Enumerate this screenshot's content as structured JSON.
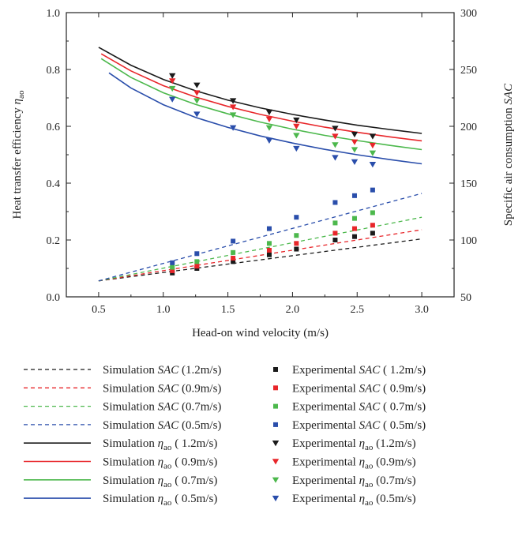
{
  "chart_data": {
    "type": "line",
    "xlabel": "Head-on wind velocity (m/s)",
    "ylabel_left": {
      "main": "Heat transfer efficiency ",
      "symbol": "η",
      "sub": "ao"
    },
    "ylabel_right": {
      "main": "Specific air consumption ",
      "italic": "SAC"
    },
    "xlim": [
      0.25,
      3.25
    ],
    "ylim_left": [
      0.0,
      1.0
    ],
    "ylim_right": [
      50,
      300
    ],
    "xticks": [
      "0.5",
      "1.0",
      "1.5",
      "2.0",
      "2.5",
      "3.0"
    ],
    "yticks_left": [
      "0.0",
      "0.2",
      "0.4",
      "0.6",
      "0.8",
      "1.0"
    ],
    "yticks_right": [
      "50",
      "100",
      "150",
      "200",
      "250",
      "300"
    ],
    "grid": false,
    "legend_position": "bottom",
    "colors": {
      "black": "#1a1a1a",
      "red": "#e8262a",
      "green": "#4cb84c",
      "blue": "#2a4eab"
    },
    "sim_sac": [
      {
        "color": "black",
        "legend": {
          "prefix": "Simulation ",
          "italic": "SAC",
          "suffix": " (1.2m/s)"
        },
        "x": [
          0.5,
          3.0
        ],
        "y": [
          64,
          101
        ]
      },
      {
        "color": "red",
        "legend": {
          "prefix": "Simulation ",
          "italic": "SAC",
          "suffix": " (0.9m/s)"
        },
        "x": [
          0.5,
          3.0
        ],
        "y": [
          64,
          109
        ]
      },
      {
        "color": "green",
        "legend": {
          "prefix": "Simulation ",
          "italic": "SAC",
          "suffix": " (0.7m/s)"
        },
        "x": [
          0.5,
          3.0
        ],
        "y": [
          64,
          120
        ]
      },
      {
        "color": "blue",
        "legend": {
          "prefix": "Simulation ",
          "italic": "SAC",
          "suffix": " (0.5m/s)"
        },
        "x": [
          0.5,
          3.0
        ],
        "y": [
          64,
          141
        ]
      }
    ],
    "exp_sac": [
      {
        "color": "black",
        "legend": {
          "prefix": "Experimental ",
          "italic": "SAC",
          "suffix": " ( 1.2m/s)"
        },
        "x": [
          1.07,
          1.26,
          1.54,
          1.82,
          2.03,
          2.33,
          2.48,
          2.62
        ],
        "y": [
          71,
          75,
          81,
          87,
          92,
          100,
          103,
          106
        ]
      },
      {
        "color": "red",
        "legend": {
          "prefix": "Experimental ",
          "italic": "SAC",
          "suffix": " ( 0.9m/s)"
        },
        "x": [
          1.07,
          1.26,
          1.54,
          1.82,
          2.03,
          2.33,
          2.48,
          2.62
        ],
        "y": [
          73,
          77,
          84,
          91,
          97,
          106,
          110,
          113
        ]
      },
      {
        "color": "green",
        "legend": {
          "prefix": "Experimental ",
          "italic": "SAC",
          "suffix": " ( 0.7m/s)"
        },
        "x": [
          1.07,
          1.26,
          1.54,
          1.82,
          2.03,
          2.33,
          2.48,
          2.62
        ],
        "y": [
          76,
          81,
          89,
          97,
          104,
          115,
          119,
          124
        ]
      },
      {
        "color": "blue",
        "legend": {
          "prefix": "Experimental ",
          "italic": "SAC",
          "suffix": " ( 0.5m/s)"
        },
        "x": [
          1.07,
          1.26,
          1.54,
          1.82,
          2.03,
          2.33,
          2.48,
          2.62
        ],
        "y": [
          80,
          88,
          99,
          110,
          120,
          133,
          139,
          144
        ]
      }
    ],
    "sim_eta": [
      {
        "color": "black",
        "legend": {
          "prefix": "Simulation ",
          "symbol": "η",
          "sub": "ao",
          "suffix": " ( 1.2m/s)"
        },
        "x": [
          0.5,
          0.75,
          1.0,
          1.25,
          1.5,
          1.75,
          2.0,
          2.25,
          2.5,
          2.75,
          3.0
        ],
        "y": [
          0.878,
          0.815,
          0.765,
          0.725,
          0.692,
          0.665,
          0.642,
          0.622,
          0.604,
          0.589,
          0.575
        ]
      },
      {
        "color": "red",
        "legend": {
          "prefix": "Simulation ",
          "symbol": "η",
          "sub": "ao",
          "suffix": " ( 0.9m/s)"
        },
        "x": [
          0.52,
          0.75,
          1.0,
          1.25,
          1.5,
          1.75,
          2.0,
          2.25,
          2.5,
          2.75,
          3.0
        ],
        "y": [
          0.855,
          0.795,
          0.743,
          0.703,
          0.67,
          0.642,
          0.618,
          0.597,
          0.579,
          0.563,
          0.549
        ]
      },
      {
        "color": "green",
        "legend": {
          "prefix": "Simulation ",
          "symbol": "η",
          "sub": "ao",
          "suffix": " ( 0.7m/s)"
        },
        "x": [
          0.52,
          0.75,
          1.0,
          1.25,
          1.5,
          1.75,
          2.0,
          2.25,
          2.5,
          2.75,
          3.0
        ],
        "y": [
          0.838,
          0.772,
          0.718,
          0.677,
          0.644,
          0.615,
          0.59,
          0.568,
          0.55,
          0.533,
          0.518
        ]
      },
      {
        "color": "blue",
        "legend": {
          "prefix": "Simulation ",
          "symbol": "η",
          "sub": "ao",
          "suffix": " ( 0.5m/s)"
        },
        "x": [
          0.58,
          0.75,
          1.0,
          1.25,
          1.5,
          1.75,
          2.0,
          2.25,
          2.5,
          2.75,
          3.0
        ],
        "y": [
          0.788,
          0.735,
          0.676,
          0.631,
          0.596,
          0.566,
          0.541,
          0.519,
          0.5,
          0.483,
          0.468
        ]
      }
    ],
    "exp_eta": [
      {
        "color": "black",
        "legend": {
          "prefix": "Experimental ",
          "symbol": "η",
          "sub": "ao",
          "suffix": " (1.2m/s)"
        },
        "x": [
          1.07,
          1.26,
          1.54,
          1.82,
          2.03,
          2.33,
          2.48,
          2.62
        ],
        "y": [
          0.778,
          0.745,
          0.69,
          0.65,
          0.622,
          0.593,
          0.572,
          0.565
        ]
      },
      {
        "color": "red",
        "legend": {
          "prefix": "Experimental ",
          "symbol": "η",
          "sub": "ao",
          "suffix": " (0.9m/s)"
        },
        "x": [
          1.07,
          1.26,
          1.54,
          1.82,
          2.03,
          2.33,
          2.48,
          2.62
        ],
        "y": [
          0.76,
          0.718,
          0.668,
          0.625,
          0.6,
          0.565,
          0.545,
          0.533
        ]
      },
      {
        "color": "green",
        "legend": {
          "prefix": "Experimental ",
          "symbol": "η",
          "sub": "ao",
          "suffix": " (0.7m/s)"
        },
        "x": [
          1.07,
          1.26,
          1.54,
          1.82,
          2.03,
          2.33,
          2.48,
          2.62
        ],
        "y": [
          0.733,
          0.69,
          0.64,
          0.595,
          0.568,
          0.535,
          0.518,
          0.506
        ]
      },
      {
        "color": "blue",
        "legend": {
          "prefix": "Experimental ",
          "symbol": "η",
          "sub": "ao",
          "suffix": " (0.5m/s)"
        },
        "x": [
          1.07,
          1.26,
          1.54,
          1.82,
          2.03,
          2.33,
          2.48,
          2.62
        ],
        "y": [
          0.695,
          0.643,
          0.595,
          0.55,
          0.522,
          0.49,
          0.475,
          0.466
        ]
      }
    ]
  }
}
